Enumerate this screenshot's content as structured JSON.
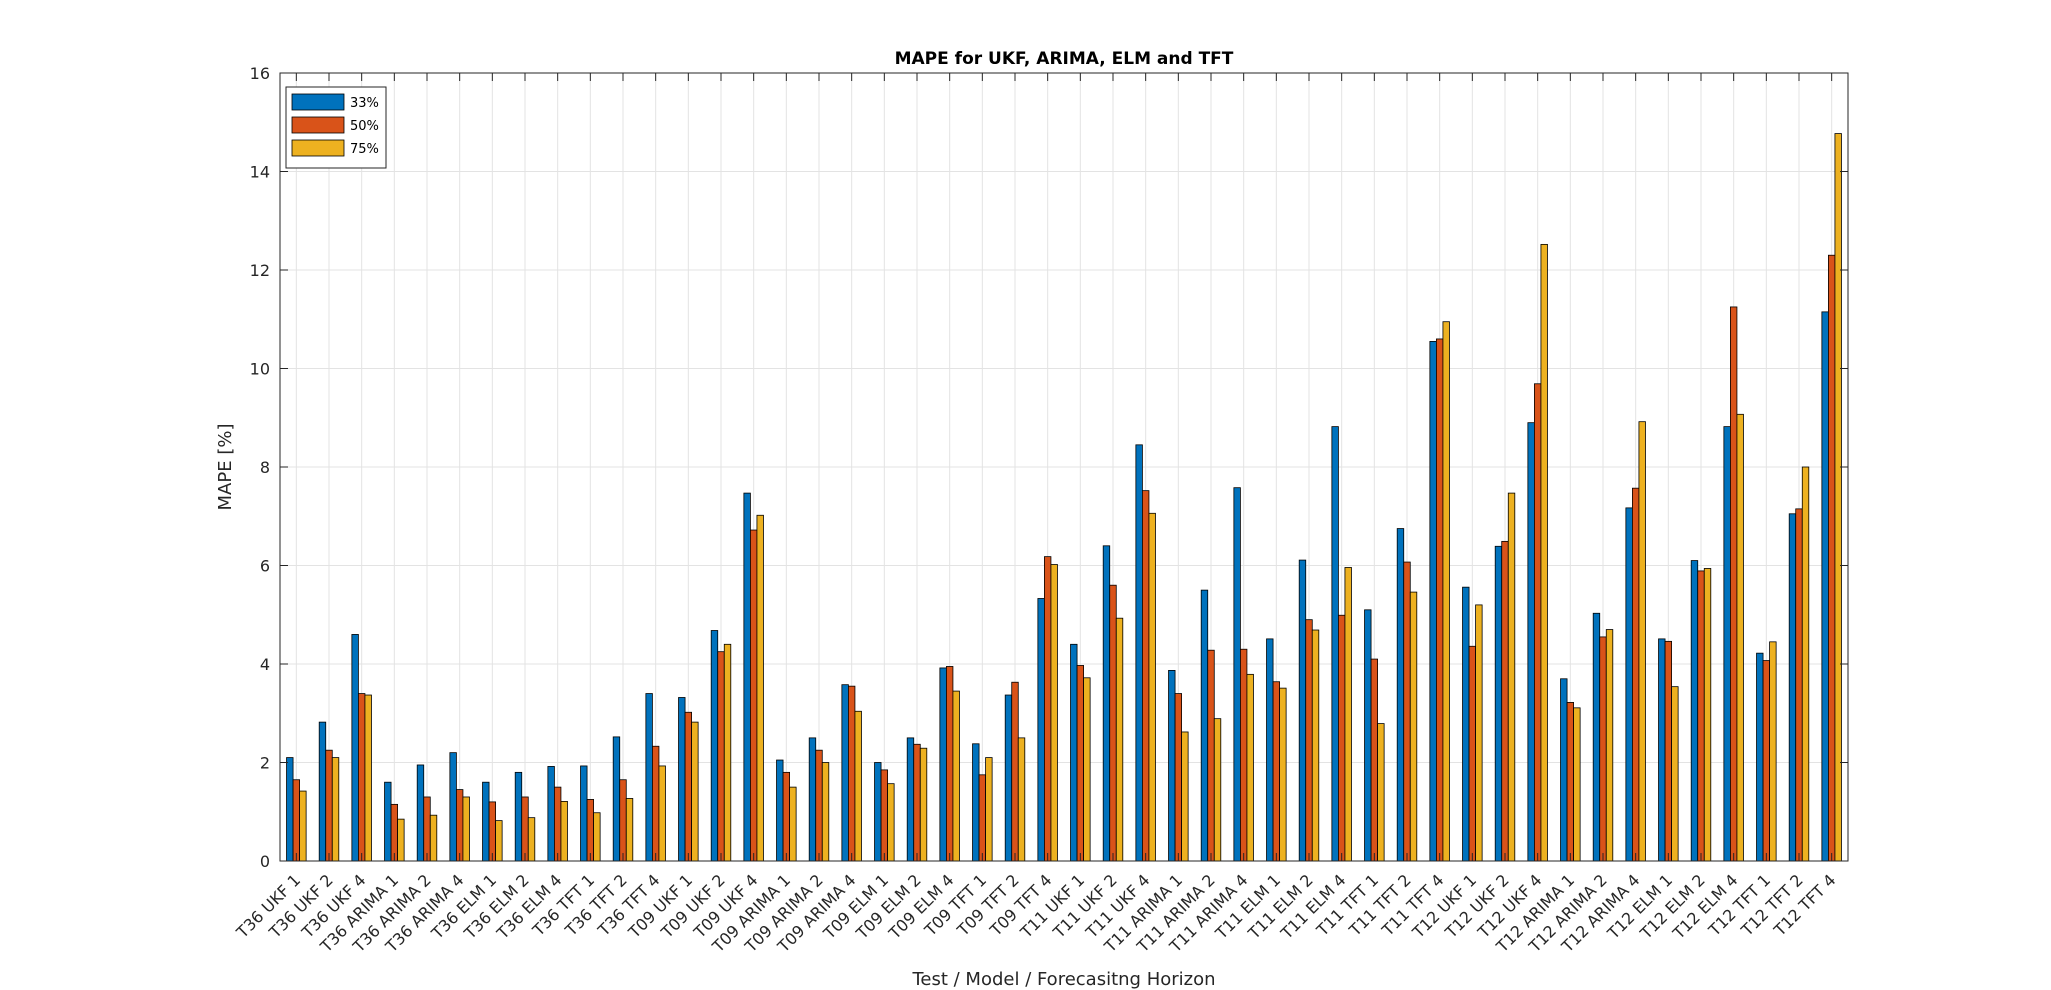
{
  "chart_data": {
    "type": "bar",
    "title": "MAPE for UKF, ARIMA, ELM and TFT",
    "xlabel": "Test / Model / Forecasitng Horizon",
    "ylabel": "MAPE [%]",
    "ylim": [
      0,
      16
    ],
    "yticks": [
      "0",
      "2",
      "4",
      "6",
      "8",
      "10",
      "12",
      "14",
      "16"
    ],
    "grid": true,
    "legend_position": "top-left",
    "categories": [
      "T36 UKF 1",
      "T36 UKF 2",
      "T36 UKF 4",
      "T36 ARIMA 1",
      "T36 ARIMA 2",
      "T36 ARIMA 4",
      "T36 ELM 1",
      "T36 ELM 2",
      "T36 ELM 4",
      "T36 TFT 1",
      "T36 TFT 2",
      "T36 TFT 4",
      "T09 UKF 1",
      "T09 UKF 2",
      "T09 UKF 4",
      "T09 ARIMA 1",
      "T09 ARIMA 2",
      "T09 ARIMA 4",
      "T09 ELM 1",
      "T09 ELM 2",
      "T09 ELM 4",
      "T09 TFT 1",
      "T09 TFT 2",
      "T09 TFT 4",
      "T11 UKF 1",
      "T11 UKF 2",
      "T11 UKF 4",
      "T11 ARIMA 1",
      "T11 ARIMA 2",
      "T11 ARIMA 4",
      "T11 ELM 1",
      "T11 ELM 2",
      "T11 ELM 4",
      "T11 TFT 1",
      "T11 TFT 2",
      "T11 TFT 4",
      "T12 UKF 1",
      "T12 UKF 2",
      "T12 UKF 4",
      "T12 ARIMA 1",
      "T12 ARIMA 2",
      "T12 ARIMA 4",
      "T12 ELM 1",
      "T12 ELM 2",
      "T12 ELM 4",
      "T12 TFT 1",
      "T12 TFT 2",
      "T12 TFT 4"
    ],
    "series": [
      {
        "name": "33%",
        "color": "#0072BD",
        "values": [
          2.1,
          2.82,
          4.6,
          1.6,
          1.95,
          2.2,
          1.6,
          1.8,
          1.92,
          1.93,
          2.52,
          3.4,
          3.32,
          4.68,
          7.47,
          2.05,
          2.5,
          3.58,
          2.0,
          2.5,
          3.92,
          2.38,
          3.37,
          5.33,
          4.4,
          6.4,
          8.45,
          3.87,
          5.5,
          7.58,
          4.51,
          6.11,
          8.82,
          5.1,
          6.75,
          10.55,
          5.56,
          6.39,
          8.9,
          3.7,
          5.03,
          7.17,
          4.51,
          6.1,
          8.82,
          4.22,
          7.05,
          11.15
        ]
      },
      {
        "name": "50%",
        "color": "#D95319",
        "values": [
          1.65,
          2.25,
          3.4,
          1.15,
          1.3,
          1.45,
          1.2,
          1.3,
          1.5,
          1.25,
          1.65,
          2.33,
          3.02,
          4.25,
          6.72,
          1.8,
          2.25,
          3.55,
          1.85,
          2.37,
          3.95,
          1.75,
          3.63,
          6.18,
          3.97,
          5.6,
          7.52,
          3.4,
          4.28,
          4.3,
          3.64,
          4.9,
          4.99,
          4.1,
          6.07,
          10.6,
          4.36,
          6.49,
          9.69,
          3.22,
          4.55,
          7.57,
          4.46,
          5.89,
          11.25,
          4.07,
          7.15,
          12.3
        ]
      },
      {
        "name": "75%",
        "color": "#EDB120",
        "values": [
          1.42,
          2.1,
          3.37,
          0.85,
          0.93,
          1.3,
          0.82,
          0.88,
          1.21,
          0.98,
          1.27,
          1.93,
          2.82,
          4.4,
          7.02,
          1.5,
          2.0,
          3.04,
          1.57,
          2.29,
          3.45,
          2.1,
          2.5,
          6.02,
          3.72,
          4.93,
          7.06,
          2.62,
          2.89,
          3.79,
          3.51,
          4.69,
          5.96,
          2.79,
          5.46,
          10.95,
          5.2,
          7.47,
          12.52,
          3.11,
          4.7,
          8.92,
          3.54,
          5.94,
          9.07,
          4.45,
          8.0,
          14.77
        ]
      }
    ]
  }
}
